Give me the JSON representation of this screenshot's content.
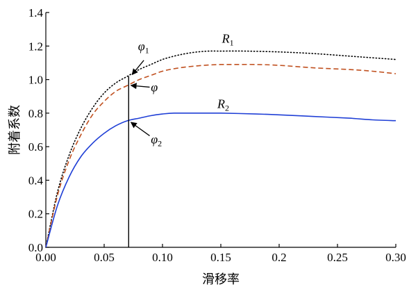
{
  "chart_data": {
    "type": "line",
    "xlabel": "滑移率",
    "ylabel": "附着系数",
    "xlim": [
      0,
      0.3
    ],
    "ylim": [
      0,
      1.4
    ],
    "grid": false,
    "xticks": [
      0,
      0.05,
      0.1,
      0.15,
      0.2,
      0.25,
      0.3
    ],
    "xtick_labels": [
      "0.00",
      "0.05",
      "0.10",
      "0.15",
      "0.2",
      "0.25",
      "0.30"
    ],
    "yticks": [
      0,
      0.2,
      0.4,
      0.6,
      0.8,
      1.0,
      1.2,
      1.4
    ],
    "ytick_labels": [
      "0.0",
      "0.2",
      "0.4",
      "0.6",
      "0.8",
      "1.0",
      "1.2",
      "1.4"
    ],
    "series": [
      {
        "name": "R1",
        "style": "dotted",
        "color": "#000000",
        "x": [
          0,
          0.01,
          0.02,
          0.03,
          0.04,
          0.05,
          0.06,
          0.07,
          0.08,
          0.09,
          0.1,
          0.11,
          0.12,
          0.13,
          0.14,
          0.15,
          0.17,
          0.2,
          0.23,
          0.26,
          0.28,
          0.3
        ],
        "y": [
          0,
          0.33,
          0.55,
          0.71,
          0.83,
          0.92,
          0.98,
          1.02,
          1.06,
          1.09,
          1.12,
          1.14,
          1.155,
          1.165,
          1.17,
          1.17,
          1.17,
          1.165,
          1.155,
          1.14,
          1.13,
          1.12
        ]
      },
      {
        "name": "",
        "style": "dashed",
        "color": "#c0501f",
        "x": [
          0,
          0.01,
          0.02,
          0.03,
          0.04,
          0.05,
          0.06,
          0.07,
          0.08,
          0.09,
          0.1,
          0.11,
          0.12,
          0.13,
          0.14,
          0.15,
          0.16,
          0.18,
          0.2,
          0.23,
          0.26,
          0.28,
          0.3
        ],
        "y": [
          0,
          0.31,
          0.52,
          0.67,
          0.79,
          0.87,
          0.93,
          0.965,
          1.0,
          1.025,
          1.05,
          1.065,
          1.075,
          1.082,
          1.087,
          1.09,
          1.09,
          1.09,
          1.085,
          1.07,
          1.06,
          1.05,
          1.035
        ]
      },
      {
        "name": "R2",
        "style": "solid",
        "color": "#1f3fd6",
        "x": [
          0,
          0.01,
          0.02,
          0.03,
          0.04,
          0.05,
          0.06,
          0.07,
          0.08,
          0.09,
          0.1,
          0.11,
          0.13,
          0.15,
          0.18,
          0.2,
          0.23,
          0.26,
          0.28,
          0.3
        ],
        "y": [
          0,
          0.25,
          0.42,
          0.54,
          0.62,
          0.68,
          0.725,
          0.755,
          0.77,
          0.785,
          0.795,
          0.8,
          0.8,
          0.8,
          0.795,
          0.79,
          0.78,
          0.77,
          0.76,
          0.755
        ]
      }
    ],
    "vertical_line": {
      "x": 0.071,
      "y_from": 0,
      "y_to": 1.02
    },
    "annotations": [
      {
        "label": "φ",
        "sub": "1",
        "text_x": 0.079,
        "text_y": 1.175,
        "arrow_from": [
          0.084,
          1.115
        ],
        "arrow_to": [
          0.074,
          1.03
        ]
      },
      {
        "label": "φ",
        "sub": "",
        "text_x": 0.09,
        "text_y": 0.93,
        "arrow_from": [
          0.089,
          0.955
        ],
        "arrow_to": [
          0.073,
          0.965
        ]
      },
      {
        "label": "φ",
        "sub": "2",
        "text_x": 0.09,
        "text_y": 0.62,
        "arrow_from": [
          0.089,
          0.665
        ],
        "arrow_to": [
          0.073,
          0.745
        ]
      },
      {
        "label": "R",
        "sub": "1",
        "text_x": 0.151,
        "text_y": 1.22,
        "arrow_from": null,
        "arrow_to": null
      },
      {
        "label": "R",
        "sub": "2",
        "text_x": 0.147,
        "text_y": 0.83,
        "arrow_from": null,
        "arrow_to": null
      }
    ]
  }
}
